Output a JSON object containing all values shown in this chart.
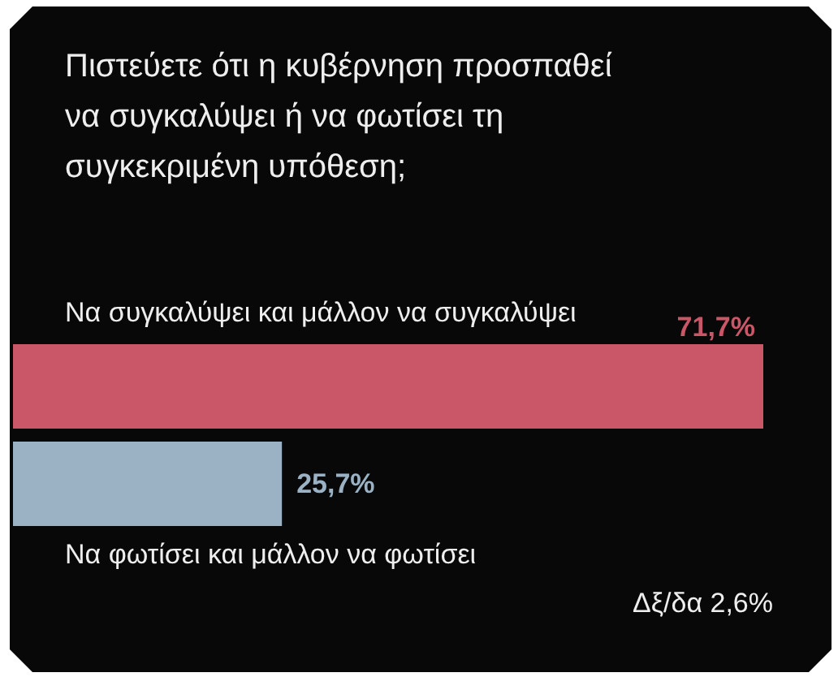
{
  "chart_data": {
    "type": "bar",
    "orientation": "horizontal",
    "title": "Πιστεύετε ότι η κυβέρνηση προσπαθεί να συγκαλύψει ή να φωτίσει τη συγκεκριμένη υπόθεση;",
    "categories": [
      "Να συγκαλύψει και μάλλον να συγκαλύψει",
      "Να φωτίσει και μάλλον να φωτίσει"
    ],
    "values": [
      71.7,
      25.7
    ],
    "colors": [
      "#c95768",
      "#9bb2c4"
    ],
    "value_labels": [
      "71,7%",
      "25,7%"
    ],
    "annotations": [
      "Δξ/δα 2,6%"
    ]
  }
}
